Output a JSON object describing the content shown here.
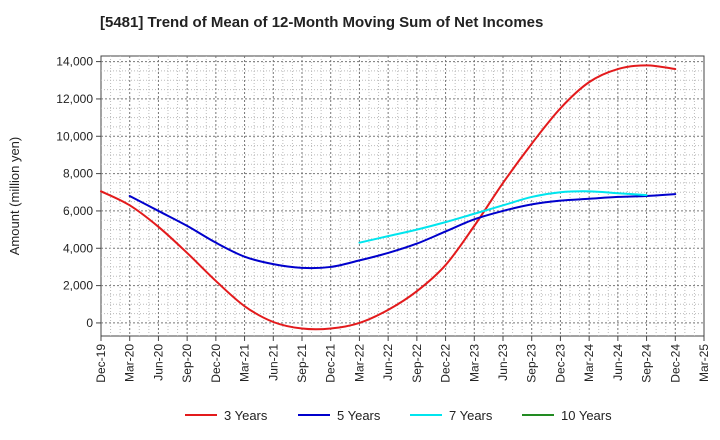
{
  "chart_data": {
    "type": "line",
    "title": "[5481]  Trend of Mean of 12-Month Moving Sum of Net Incomes",
    "xlabel": "",
    "ylabel": "Amount (million yen)",
    "ylim": [
      -700,
      14300
    ],
    "yticks": [
      0,
      2000,
      4000,
      6000,
      8000,
      10000,
      12000,
      14000
    ],
    "ytick_labels": [
      "0",
      "2,000",
      "4,000",
      "6,000",
      "8,000",
      "10,000",
      "12,000",
      "14,000"
    ],
    "x_categories": [
      "Dec-19",
      "Mar-20",
      "Jun-20",
      "Sep-20",
      "Dec-20",
      "Mar-21",
      "Jun-21",
      "Sep-21",
      "Dec-21",
      "Mar-22",
      "Jun-22",
      "Sep-22",
      "Dec-22",
      "Mar-23",
      "Jun-23",
      "Sep-23",
      "Dec-23",
      "Mar-24",
      "Jun-24",
      "Sep-24",
      "Dec-24",
      "Mar-25"
    ],
    "grid": true,
    "legend_position": "bottom",
    "series": [
      {
        "name": "3 Years",
        "color": "#e31a1c",
        "start_index": 0,
        "values": [
          7050,
          6300,
          5150,
          3750,
          2250,
          900,
          50,
          -300,
          -300,
          0,
          700,
          1700,
          3100,
          5200,
          7500,
          9600,
          11500,
          12900,
          13600,
          13800,
          13600
        ]
      },
      {
        "name": "5 Years",
        "color": "#0000cc",
        "start_index": 1,
        "values": [
          6800,
          6000,
          5200,
          4300,
          3550,
          3150,
          2950,
          3000,
          3350,
          3750,
          4250,
          4900,
          5550,
          6000,
          6350,
          6550,
          6650,
          6750,
          6800,
          6900
        ]
      },
      {
        "name": "7 Years",
        "color": "#00e5ee",
        "start_index": 9,
        "values": [
          4300,
          4650,
          5000,
          5400,
          5850,
          6300,
          6750,
          7000,
          7050,
          6950,
          6850
        ]
      },
      {
        "name": "10 Years",
        "color": "#228b22",
        "start_index": 0,
        "values": []
      }
    ]
  }
}
